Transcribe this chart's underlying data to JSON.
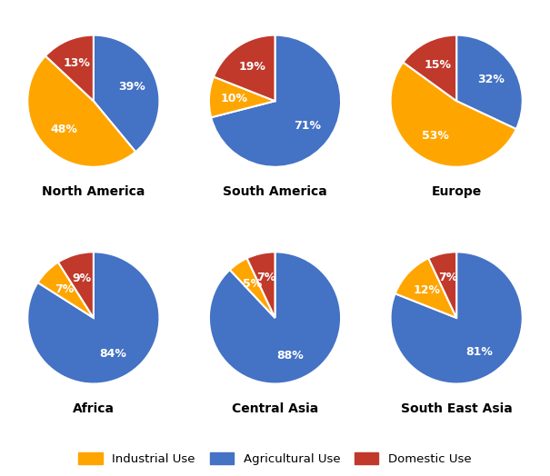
{
  "regions": [
    "North America",
    "South America",
    "Europe",
    "Africa",
    "Central Asia",
    "South East Asia"
  ],
  "data": {
    "North America": [
      39,
      48,
      13
    ],
    "South America": [
      71,
      10,
      19
    ],
    "Europe": [
      32,
      53,
      15
    ],
    "Africa": [
      84,
      7,
      9
    ],
    "Central Asia": [
      88,
      5,
      7
    ],
    "South East Asia": [
      81,
      12,
      7
    ]
  },
  "startangles": {
    "North America": 90,
    "South America": 90,
    "Europe": 90,
    "Africa": 90,
    "Central Asia": 90,
    "South East Asia": 90
  },
  "colors": [
    "#4472C4",
    "#FFA500",
    "#C0392B"
  ],
  "legend_labels": [
    "Industrial Use",
    "Agricultural Use",
    "Domestic Use"
  ],
  "legend_colors": [
    "#FFA500",
    "#4472C4",
    "#C0392B"
  ],
  "label_fontsize": 9,
  "title_fontsize": 10,
  "background_color": "#FFFFFF"
}
